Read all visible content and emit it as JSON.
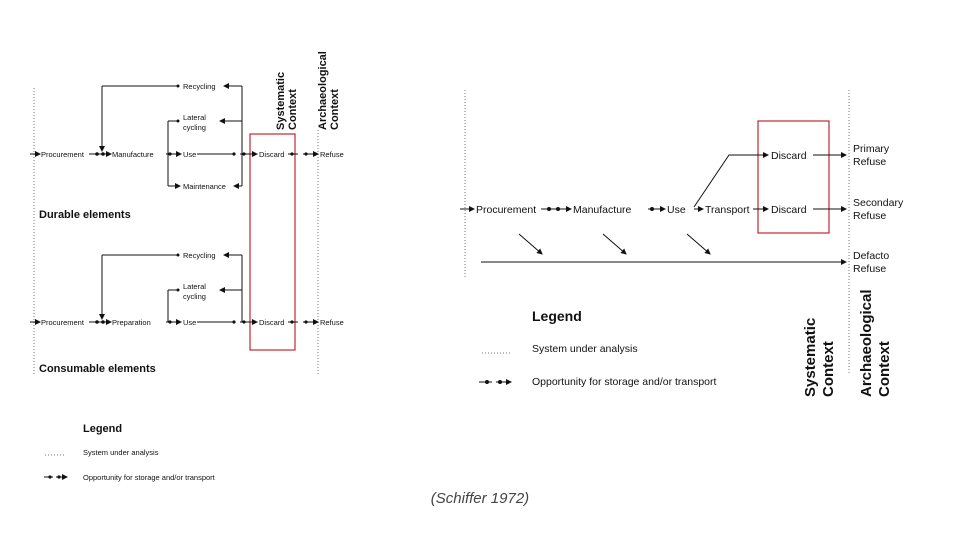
{
  "caption": "(Schiffer 1972)",
  "left": {
    "durable": {
      "procurement": "Procurement",
      "manufacture": "Manufacture",
      "use": "Use",
      "discard": "Discard",
      "refuse": "Refuse",
      "recycling": "Recycling",
      "lateral_line1": "Lateral",
      "lateral_line2": "cycling",
      "maintenance": "Maintenance",
      "label": "Durable elements"
    },
    "consumable": {
      "procurement": "Procurement",
      "preparation": "Preparation",
      "use": "Use",
      "discard": "Discard",
      "refuse": "Refuse",
      "recycling": "Recycling",
      "lateral_line1": "Lateral",
      "lateral_line2": "cycling",
      "label": "Consumable elements"
    },
    "systematic_line1": "Systematic",
    "systematic_line2": "Context",
    "archaeological_line1": "Archaeological",
    "archaeological_line2": "Context",
    "legend": {
      "title": "Legend",
      "system": "System under analysis",
      "storage": "Opportunity for storage and/or transport"
    }
  },
  "right": {
    "procurement": "Procurement",
    "manufacture": "Manufacture",
    "use": "Use",
    "transport": "Transport",
    "discard_top": "Discard",
    "discard_bottom": "Discard",
    "primary_line1": "Primary",
    "primary_line2": "Refuse",
    "secondary_line1": "Secondary",
    "secondary_line2": "Refuse",
    "defacto_line1": "Defacto",
    "defacto_line2": "Refuse",
    "systematic_line1": "Systematic",
    "systematic_line2": "Context",
    "archaeological_line1": "Archaeological",
    "archaeological_line2": "Context",
    "legend": {
      "title": "Legend",
      "system": "System under analysis",
      "storage": "Opportunity for storage and/or transport"
    }
  }
}
